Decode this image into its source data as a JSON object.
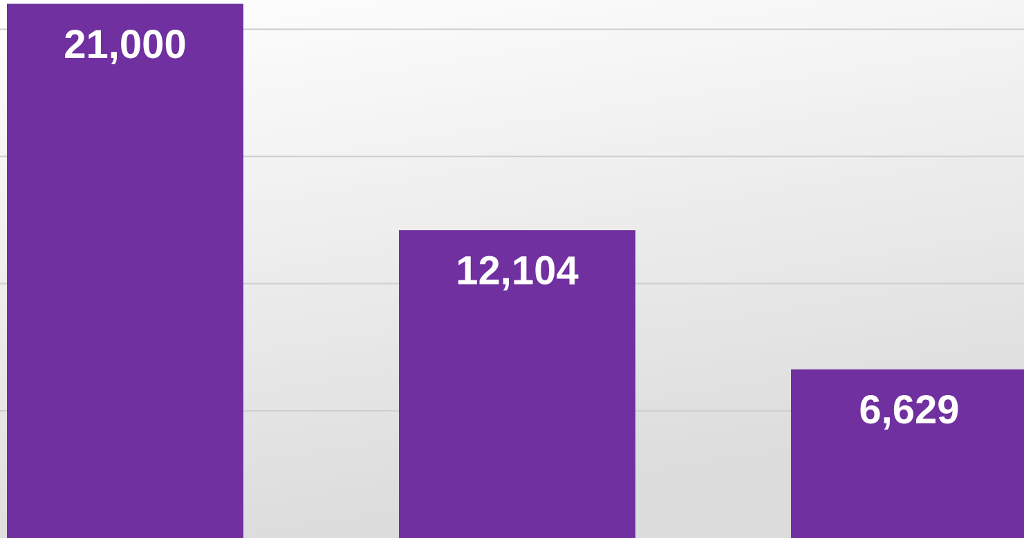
{
  "chart_data": {
    "type": "bar",
    "categories": [
      null,
      null,
      null
    ],
    "values": [
      21000,
      12104,
      6629
    ],
    "value_labels": [
      "21,000",
      "12,104",
      "6,629"
    ],
    "color": "#7030a0",
    "ylim": [
      0,
      21150
    ],
    "yticks": [
      5000,
      10000,
      15000,
      20000
    ],
    "grid": true
  }
}
